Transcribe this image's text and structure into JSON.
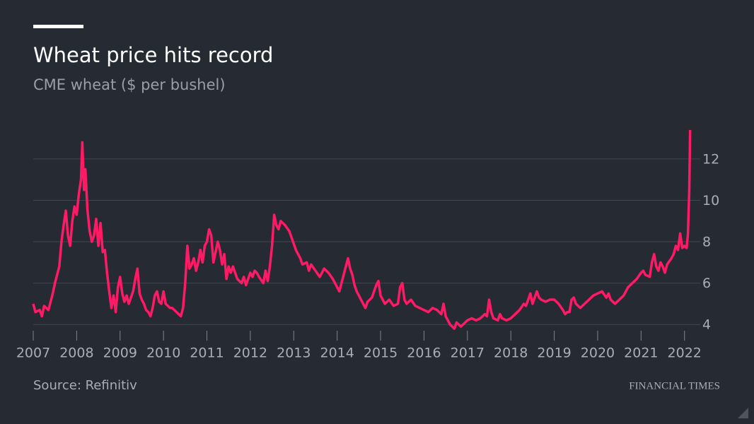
{
  "chart_data": {
    "type": "line",
    "title": "Wheat price hits record",
    "subtitle": "CME wheat ($ per bushel)",
    "source": "Source: Refinitiv",
    "brand": "FINANCIAL TIMES",
    "xlim": [
      2007,
      2022.2
    ],
    "xticks": [
      2007,
      2008,
      2009,
      2010,
      2011,
      2012,
      2013,
      2014,
      2015,
      2016,
      2017,
      2018,
      2019,
      2020,
      2021,
      2022
    ],
    "ylim": [
      3.7,
      13.6
    ],
    "yticks": [
      4,
      6,
      8,
      10,
      12
    ],
    "grid": true,
    "x": [
      2007.0,
      2007.05,
      2007.15,
      2007.2,
      2007.25,
      2007.35,
      2007.45,
      2007.5,
      2007.6,
      2007.65,
      2007.7,
      2007.75,
      2007.8,
      2007.85,
      2007.9,
      2007.95,
      2008.0,
      2008.05,
      2008.1,
      2008.13,
      2008.17,
      2008.2,
      2008.25,
      2008.3,
      2008.35,
      2008.4,
      2008.45,
      2008.5,
      2008.55,
      2008.6,
      2008.65,
      2008.7,
      2008.75,
      2008.8,
      2008.85,
      2008.9,
      2008.95,
      2009.0,
      2009.05,
      2009.1,
      2009.15,
      2009.2,
      2009.3,
      2009.35,
      2009.4,
      2009.45,
      2009.5,
      2009.55,
      2009.6,
      2009.65,
      2009.7,
      2009.75,
      2009.8,
      2009.85,
      2009.9,
      2009.95,
      2010.0,
      2010.05,
      2010.15,
      2010.2,
      2010.3,
      2010.35,
      2010.4,
      2010.45,
      2010.5,
      2010.55,
      2010.6,
      2010.65,
      2010.7,
      2010.75,
      2010.8,
      2010.85,
      2010.9,
      2010.95,
      2011.0,
      2011.05,
      2011.1,
      2011.15,
      2011.2,
      2011.25,
      2011.3,
      2011.35,
      2011.4,
      2011.45,
      2011.5,
      2011.55,
      2011.6,
      2011.65,
      2011.7,
      2011.75,
      2011.8,
      2011.85,
      2011.9,
      2012.0,
      2012.05,
      2012.1,
      2012.15,
      2012.2,
      2012.3,
      2012.35,
      2012.4,
      2012.45,
      2012.5,
      2012.55,
      2012.6,
      2012.65,
      2012.7,
      2012.8,
      2012.9,
      2013.0,
      2013.05,
      2013.15,
      2013.2,
      2013.3,
      2013.35,
      2013.4,
      2013.5,
      2013.6,
      2013.7,
      2013.8,
      2013.9,
      2014.0,
      2014.05,
      2014.1,
      2014.2,
      2014.25,
      2014.3,
      2014.35,
      2014.4,
      2014.45,
      2014.55,
      2014.65,
      2014.7,
      2014.8,
      2014.9,
      2014.95,
      2015.0,
      2015.1,
      2015.2,
      2015.3,
      2015.4,
      2015.45,
      2015.5,
      2015.55,
      2015.6,
      2015.7,
      2015.8,
      2015.9,
      2016.0,
      2016.1,
      2016.2,
      2016.3,
      2016.4,
      2016.45,
      2016.5,
      2016.55,
      2016.6,
      2016.65,
      2016.7,
      2016.75,
      2016.8,
      2016.85,
      2016.9,
      2016.95,
      2017.0,
      2017.1,
      2017.2,
      2017.3,
      2017.4,
      2017.45,
      2017.5,
      2017.55,
      2017.6,
      2017.7,
      2017.75,
      2017.8,
      2017.9,
      2018.0,
      2018.1,
      2018.2,
      2018.3,
      2018.35,
      2018.4,
      2018.45,
      2018.5,
      2018.55,
      2018.6,
      2018.65,
      2018.7,
      2018.8,
      2018.9,
      2019.0,
      2019.1,
      2019.2,
      2019.25,
      2019.3,
      2019.35,
      2019.4,
      2019.45,
      2019.5,
      2019.6,
      2019.7,
      2019.8,
      2019.9,
      2020.0,
      2020.1,
      2020.2,
      2020.25,
      2020.3,
      2020.4,
      2020.5,
      2020.6,
      2020.7,
      2020.8,
      2020.9,
      2021.0,
      2021.05,
      2021.1,
      2021.2,
      2021.25,
      2021.3,
      2021.35,
      2021.4,
      2021.45,
      2021.5,
      2021.55,
      2021.6,
      2021.7,
      2021.75,
      2021.8,
      2021.85,
      2021.9,
      2021.95,
      2022.0,
      2022.05,
      2022.08,
      2022.11,
      2022.13
    ],
    "series": [
      {
        "color": "#ff1a66",
        "values": [
          5.0,
          4.6,
          4.7,
          4.4,
          4.9,
          4.7,
          5.5,
          6.0,
          6.8,
          8.0,
          8.8,
          9.5,
          8.3,
          7.8,
          9.0,
          9.7,
          9.3,
          10.3,
          11.0,
          12.8,
          10.5,
          11.5,
          9.5,
          8.5,
          8.0,
          8.3,
          9.1,
          7.8,
          8.9,
          7.5,
          7.6,
          6.5,
          5.6,
          4.8,
          5.4,
          4.6,
          5.8,
          6.3,
          5.5,
          5.1,
          5.4,
          5.0,
          5.6,
          6.2,
          6.7,
          5.5,
          5.2,
          5.0,
          4.7,
          4.6,
          4.4,
          4.8,
          5.4,
          5.6,
          5.1,
          5.0,
          5.6,
          5.0,
          4.8,
          4.8,
          4.6,
          4.5,
          4.4,
          4.8,
          6.0,
          7.8,
          6.7,
          6.9,
          7.2,
          6.6,
          7.0,
          7.6,
          7.0,
          7.8,
          8.0,
          8.6,
          8.3,
          7.0,
          7.5,
          8.0,
          7.6,
          6.9,
          7.4,
          6.2,
          6.8,
          6.5,
          6.8,
          6.5,
          6.2,
          6.1,
          6.0,
          6.3,
          5.9,
          6.5,
          6.3,
          6.6,
          6.5,
          6.3,
          6.0,
          6.6,
          6.1,
          6.8,
          7.8,
          9.3,
          8.8,
          8.6,
          9.0,
          8.8,
          8.5,
          7.9,
          7.6,
          7.2,
          6.9,
          7.0,
          6.6,
          6.9,
          6.6,
          6.3,
          6.7,
          6.5,
          6.2,
          5.8,
          5.6,
          6.0,
          6.8,
          7.2,
          6.7,
          6.4,
          5.9,
          5.6,
          5.2,
          4.8,
          5.1,
          5.3,
          5.9,
          6.1,
          5.4,
          5.0,
          5.2,
          4.9,
          5.0,
          5.8,
          6.0,
          5.2,
          5.0,
          5.2,
          4.9,
          4.8,
          4.7,
          4.6,
          4.8,
          4.7,
          4.5,
          5.0,
          4.4,
          4.2,
          4.0,
          3.9,
          3.8,
          4.1,
          4.0,
          3.9,
          4.0,
          4.1,
          4.2,
          4.3,
          4.2,
          4.3,
          4.5,
          4.4,
          5.2,
          4.6,
          4.3,
          4.2,
          4.5,
          4.3,
          4.2,
          4.3,
          4.5,
          4.7,
          5.0,
          4.9,
          5.2,
          5.5,
          5.0,
          5.3,
          5.6,
          5.3,
          5.2,
          5.1,
          5.2,
          5.2,
          5.0,
          4.7,
          4.5,
          4.6,
          4.6,
          5.2,
          5.3,
          5.0,
          4.8,
          5.0,
          5.2,
          5.4,
          5.5,
          5.6,
          5.3,
          5.5,
          5.2,
          5.0,
          5.2,
          5.4,
          5.8,
          6.0,
          6.2,
          6.5,
          6.6,
          6.4,
          6.3,
          7.0,
          7.4,
          6.8,
          6.6,
          7.0,
          6.8,
          6.5,
          6.9,
          7.2,
          7.4,
          7.8,
          7.6,
          8.4,
          7.7,
          7.8,
          7.7,
          8.4,
          10.5,
          13.4
        ]
      }
    ]
  }
}
